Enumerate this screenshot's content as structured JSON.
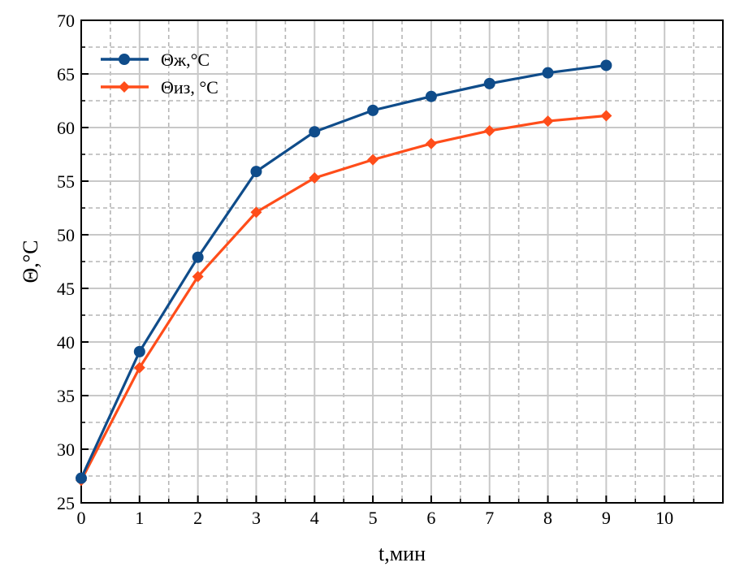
{
  "chart_data": {
    "type": "line",
    "title": "",
    "xlabel": "t,мин",
    "ylabel": "Θ,°C",
    "xlim": [
      0,
      11
    ],
    "ylim": [
      25,
      70
    ],
    "xticks": [
      0,
      1,
      2,
      3,
      4,
      5,
      6,
      7,
      8,
      9,
      10
    ],
    "yticks": [
      25,
      30,
      35,
      40,
      45,
      50,
      55,
      60,
      65,
      70
    ],
    "grid": true,
    "legend_position": "top-left",
    "x": [
      0,
      1,
      2,
      3,
      4,
      5,
      6,
      7,
      8,
      9
    ],
    "series": [
      {
        "name": "Θж,°C",
        "color": "#0f4c8a",
        "marker": "circle",
        "values": [
          27.3,
          39.1,
          47.9,
          55.9,
          59.6,
          61.6,
          62.9,
          64.1,
          65.1,
          65.8
        ]
      },
      {
        "name": "Θиз, °C",
        "color": "#ff4d1a",
        "marker": "diamond",
        "values": [
          27.1,
          37.6,
          46.1,
          52.1,
          55.3,
          57.0,
          58.5,
          59.7,
          60.6,
          61.1
        ]
      }
    ]
  }
}
